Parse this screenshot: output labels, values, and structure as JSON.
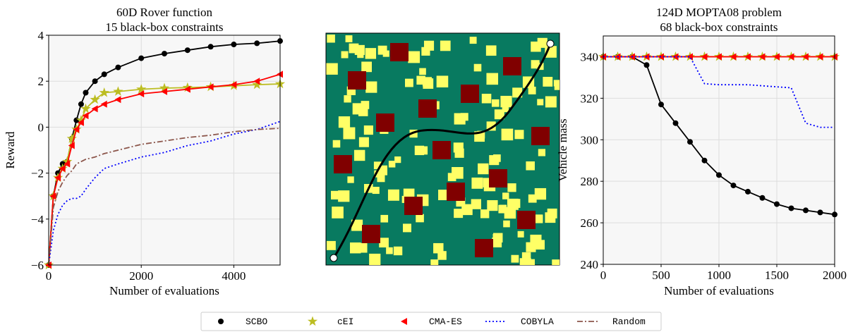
{
  "chart_data": [
    {
      "type": "line",
      "title": "60D Rover function",
      "subtitle": "15 black-box constraints",
      "xlabel": "Number of evaluations",
      "ylabel": "Reward",
      "x": [
        0,
        100,
        200,
        300,
        400,
        500,
        600,
        700,
        800,
        1000,
        1200,
        1500,
        2000,
        2500,
        3000,
        3500,
        4000,
        4500,
        5000
      ],
      "xlim": [
        0,
        5000
      ],
      "xticks": [
        0,
        2000,
        4000
      ],
      "ylim": [
        -6,
        4
      ],
      "yticks": [
        {
          "value": -6,
          "label": "−6"
        },
        {
          "value": -4,
          "label": "−4"
        },
        {
          "value": -2,
          "label": "−2"
        },
        0,
        2,
        4
      ],
      "grid": true,
      "series": [
        {
          "name": "SCBO",
          "color": "#000000",
          "marker": "circle",
          "dash": "solid",
          "values": [
            -6,
            -3,
            -2,
            -1.6,
            -1.5,
            -0.5,
            0.3,
            1.0,
            1.5,
            2.0,
            2.3,
            2.6,
            3.0,
            3.2,
            3.35,
            3.5,
            3.6,
            3.65,
            3.75
          ]
        },
        {
          "name": "cEI",
          "color": "#bcbd22",
          "marker": "star",
          "dash": "solid",
          "values": [
            -6,
            -3,
            -2.2,
            -1.8,
            -1.5,
            -0.5,
            -0.1,
            0.3,
            0.8,
            1.2,
            1.5,
            1.55,
            1.65,
            1.7,
            1.72,
            1.75,
            1.8,
            1.85,
            1.88
          ]
        },
        {
          "name": "CMA-ES",
          "color": "#ff0000",
          "marker": "triangle-left",
          "dash": "solid",
          "values": [
            -6,
            -3,
            -2.2,
            -1.8,
            -1.6,
            -0.8,
            -0.1,
            0.2,
            0.5,
            0.8,
            1.0,
            1.2,
            1.45,
            1.55,
            1.65,
            1.75,
            1.85,
            2.0,
            2.3
          ]
        },
        {
          "name": "COBYLA",
          "color": "#0000ff",
          "marker": "none",
          "dash": "dotted",
          "values": [
            -6,
            -4.5,
            -3.8,
            -3.4,
            -3.2,
            -3.1,
            -3.1,
            -3.0,
            -2.7,
            -2.2,
            -1.8,
            -1.6,
            -1.3,
            -1.1,
            -0.8,
            -0.6,
            -0.3,
            -0.1,
            0.25
          ]
        },
        {
          "name": "Random",
          "color": "#8c564b",
          "marker": "none",
          "dash": "dashdot",
          "values": [
            -6,
            -3.5,
            -2.8,
            -2.4,
            -2.1,
            -1.9,
            -1.6,
            -1.5,
            -1.4,
            -1.3,
            -1.15,
            -1.0,
            -0.75,
            -0.6,
            -0.45,
            -0.35,
            -0.2,
            -0.1,
            -0.05
          ]
        }
      ]
    },
    {
      "type": "line",
      "title": "124D MOPTA08 problem",
      "subtitle": "68 black-box constraints",
      "xlabel": "Number of evaluations",
      "ylabel": "Vehicle mass",
      "x": [
        0,
        125,
        250,
        375,
        500,
        625,
        750,
        875,
        1000,
        1125,
        1250,
        1375,
        1500,
        1625,
        1750,
        1875,
        2000
      ],
      "xlim": [
        0,
        2000
      ],
      "xticks": [
        0,
        500,
        1000,
        1500,
        2000
      ],
      "ylim": [
        240,
        350
      ],
      "yticks": [
        240,
        260,
        280,
        300,
        320,
        340
      ],
      "grid": true,
      "series": [
        {
          "name": "SCBO",
          "color": "#000000",
          "marker": "circle",
          "dash": "solid",
          "values": [
            340,
            340,
            340,
            336,
            317,
            308,
            299,
            290,
            283,
            278,
            275,
            272,
            269,
            267,
            266,
            265,
            264
          ]
        },
        {
          "name": "cEI",
          "color": "#bcbd22",
          "marker": "star",
          "dash": "solid",
          "values": [
            340,
            340,
            340,
            340,
            340,
            340,
            340,
            340,
            340,
            340,
            340,
            340,
            340,
            340,
            340,
            340,
            340
          ]
        },
        {
          "name": "CMA-ES",
          "color": "#ff0000",
          "marker": "triangle-left",
          "dash": "solid",
          "values": [
            340,
            340,
            340,
            340,
            340,
            340,
            340,
            340,
            340,
            340,
            340,
            340,
            340,
            340,
            340,
            340,
            340
          ]
        },
        {
          "name": "COBYLA",
          "color": "#0000ff",
          "marker": "none",
          "dash": "dotted",
          "values": [
            340,
            340,
            340,
            340,
            340,
            340,
            340,
            327,
            326.5,
            326.5,
            326.5,
            326,
            325.5,
            325,
            308,
            306,
            306
          ]
        }
      ]
    }
  ]
}
